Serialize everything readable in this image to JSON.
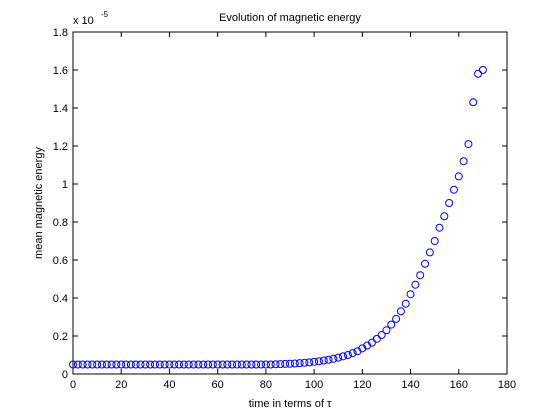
{
  "chart_data": {
    "type": "scatter",
    "title": "Evolution of magnetic energy",
    "xlabel": "time in terms of τ",
    "ylabel": "mean magnetic energy",
    "y_multiplier": {
      "base": "x 10",
      "exponent": "-5"
    },
    "series": [
      {
        "color": "#0000ff",
        "x": [
          0,
          2,
          4,
          6,
          8,
          10,
          12,
          14,
          16,
          18,
          20,
          22,
          24,
          26,
          28,
          30,
          32,
          34,
          36,
          38,
          40,
          42,
          44,
          46,
          48,
          50,
          52,
          54,
          56,
          58,
          60,
          62,
          64,
          66,
          68,
          70,
          72,
          74,
          76,
          78,
          80,
          82,
          84,
          86,
          88,
          90,
          92,
          94,
          96,
          98,
          100,
          102,
          104,
          106,
          108,
          110,
          112,
          114,
          116,
          118,
          120,
          122,
          124,
          126,
          128,
          130,
          132,
          134,
          136,
          138,
          140,
          142,
          144,
          146,
          148,
          150,
          152,
          154,
          156,
          158,
          160,
          162,
          164,
          166,
          168,
          170
        ],
        "values": [
          0.05,
          0.05,
          0.05,
          0.05,
          0.05,
          0.05,
          0.05,
          0.05,
          0.05,
          0.05,
          0.05,
          0.05,
          0.05,
          0.05,
          0.05,
          0.05,
          0.05,
          0.05,
          0.05,
          0.05,
          0.05,
          0.05,
          0.05,
          0.05,
          0.05,
          0.05,
          0.05,
          0.05,
          0.05,
          0.05,
          0.05,
          0.05,
          0.05,
          0.05,
          0.05,
          0.05,
          0.05,
          0.05,
          0.05,
          0.05,
          0.05,
          0.05,
          0.051,
          0.052,
          0.053,
          0.054,
          0.055,
          0.057,
          0.059,
          0.061,
          0.064,
          0.067,
          0.071,
          0.075,
          0.08,
          0.086,
          0.093,
          0.1,
          0.11,
          0.12,
          0.135,
          0.15,
          0.165,
          0.185,
          0.205,
          0.23,
          0.26,
          0.29,
          0.33,
          0.37,
          0.42,
          0.47,
          0.52,
          0.58,
          0.64,
          0.7,
          0.77,
          0.83,
          0.9,
          0.97,
          1.04,
          1.12,
          1.21,
          1.43,
          1.58,
          1.6
        ]
      }
    ],
    "xlim": [
      0,
      180
    ],
    "xticks": [
      0,
      20,
      40,
      60,
      80,
      100,
      120,
      140,
      160,
      180
    ],
    "ylim": [
      0,
      1.8
    ],
    "yticks": [
      0,
      0.2,
      0.4,
      0.6,
      0.8,
      1,
      1.2,
      1.4,
      1.6,
      1.8
    ],
    "grid": false
  }
}
